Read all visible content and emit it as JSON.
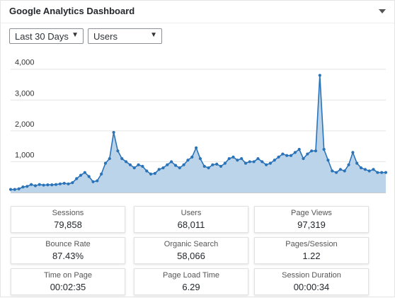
{
  "widget": {
    "title": "Google Analytics Dashboard",
    "toggle_icon": "caret-down-icon"
  },
  "filters": {
    "range": {
      "selected": "Last 30 Days"
    },
    "metric": {
      "selected": "Users"
    }
  },
  "colors": {
    "line": "#2b73b8",
    "fill": "#bcd4ea",
    "grid": "#e4e4e4",
    "axis_text": "#333333"
  },
  "chart_data": {
    "type": "area",
    "title": "",
    "xlabel": "",
    "ylabel": "",
    "ylim": [
      0,
      4200
    ],
    "yticks": [
      "1,000",
      "2,000",
      "3,000",
      "4,000"
    ],
    "ytick_values": [
      1000,
      2000,
      3000,
      4000
    ],
    "grid": true,
    "series": [
      {
        "values": [
          100,
          100,
          120,
          180,
          200,
          260,
          220,
          260,
          240,
          250,
          250,
          260,
          280,
          300,
          280,
          320,
          450,
          560,
          650,
          520,
          350,
          380,
          600,
          950,
          1100,
          1950,
          1350,
          1100,
          1000,
          900,
          800,
          900,
          850,
          700,
          600,
          620,
          750,
          800,
          900,
          1000,
          880,
          800,
          900,
          1050,
          1150,
          1450,
          1100,
          850,
          800,
          900,
          920,
          850,
          950,
          1100,
          1150,
          1050,
          1100,
          950,
          1000,
          1000,
          1100,
          1000,
          900,
          950,
          1050,
          1150,
          1250,
          1200,
          1200,
          1300,
          1400,
          1100,
          1250,
          1350,
          1350,
          3800,
          1400,
          1050,
          700,
          650,
          750,
          700,
          900,
          1300,
          950,
          800,
          750,
          700,
          750,
          650,
          650,
          650
        ]
      }
    ]
  },
  "stats": [
    {
      "label": "Sessions",
      "value": "79,858"
    },
    {
      "label": "Users",
      "value": "68,011"
    },
    {
      "label": "Page Views",
      "value": "97,319"
    },
    {
      "label": "Bounce Rate",
      "value": "87.43%"
    },
    {
      "label": "Organic Search",
      "value": "58,066"
    },
    {
      "label": "Pages/Session",
      "value": "1.22"
    },
    {
      "label": "Time on Page",
      "value": "00:02:35"
    },
    {
      "label": "Page Load Time",
      "value": "6.29"
    },
    {
      "label": "Session Duration",
      "value": "00:00:34"
    }
  ]
}
